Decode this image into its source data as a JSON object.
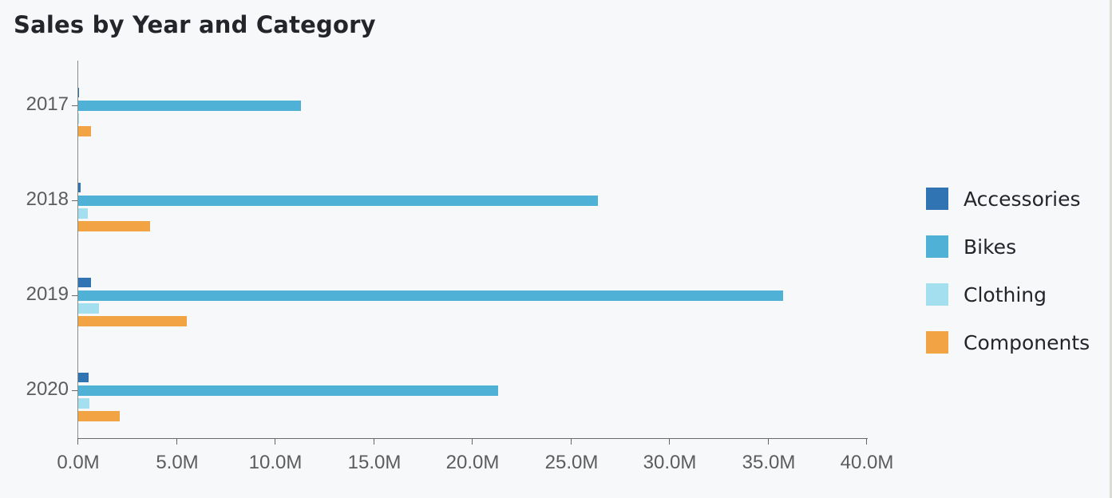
{
  "title": "Sales by Year and Category",
  "legend": [
    {
      "label": "Accessories",
      "color": "#3174b3"
    },
    {
      "label": "Bikes",
      "color": "#50b1d6"
    },
    {
      "label": "Clothing",
      "color": "#a4dff0"
    },
    {
      "label": "Components",
      "color": "#f2a444"
    }
  ],
  "y_labels": [
    "2017",
    "2018",
    "2019",
    "2020"
  ],
  "x_labels": [
    "0.0M",
    "5.0M",
    "10.0M",
    "15.0M",
    "20.0M",
    "25.0M",
    "30.0M",
    "35.0M",
    "40.0M"
  ],
  "chart_data": {
    "type": "bar",
    "orientation": "horizontal",
    "title": "Sales by Year and Category",
    "xlabel": "",
    "ylabel": "",
    "categories": [
      "2017",
      "2018",
      "2019",
      "2020"
    ],
    "series": [
      {
        "name": "Accessories",
        "color": "#3174b3",
        "values": [
          0.02,
          0.12,
          0.66,
          0.53
        ]
      },
      {
        "name": "Bikes",
        "color": "#50b1d6",
        "values": [
          11.3,
          26.35,
          35.75,
          21.3
        ]
      },
      {
        "name": "Clothing",
        "color": "#a4dff0",
        "values": [
          0.03,
          0.49,
          1.05,
          0.57
        ]
      },
      {
        "name": "Components",
        "color": "#f2a444",
        "values": [
          0.65,
          3.64,
          5.5,
          2.1
        ]
      }
    ],
    "units": "M",
    "xlim": [
      0,
      40
    ],
    "x_ticks": [
      "0.0M",
      "5.0M",
      "10.0M",
      "15.0M",
      "20.0M",
      "25.0M",
      "30.0M",
      "35.0M",
      "40.0M"
    ],
    "grid": false,
    "legend_position": "right"
  }
}
